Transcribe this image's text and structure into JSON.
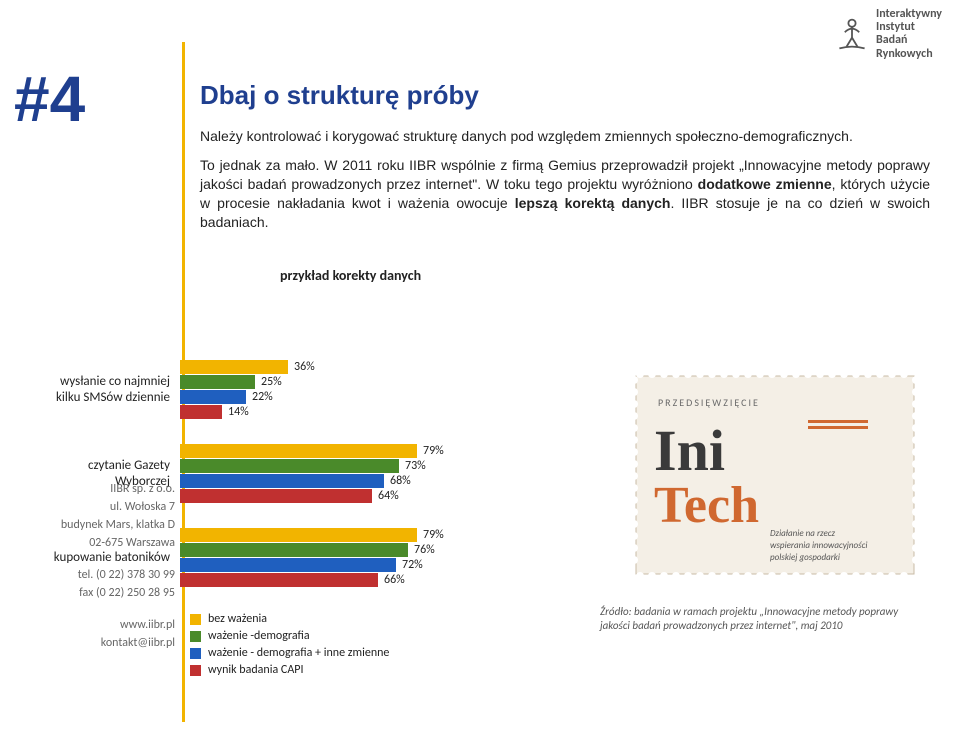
{
  "logo": {
    "line1": "Interaktywny",
    "line2": "Instytut",
    "line3": "Badań",
    "line4": "Rynkowych",
    "figureColor": "#555555"
  },
  "pageNumber": "#4",
  "heading": "Dbaj o strukturę próby",
  "colors": {
    "headingBlue": "#1f3f8f",
    "ruleYellow": "#f2b400",
    "text": "#222222"
  },
  "para1": "Należy kontrolować i korygować strukturę danych pod względem zmiennych społeczno-demograficznych.",
  "para2a": "To jednak za mało. W 2011 roku IIBR wspólnie z firmą Gemius przeprowadził projekt „Innowacyjne metody poprawy jakości badań prowadzonych przez internet\". W toku tego projektu wyróżniono ",
  "para2bold1": "dodatkowe zmienne",
  "para2b": ", których użycie w procesie nakładania kwot i ważenia owocuje ",
  "para2bold2": "lepszą korektą danych",
  "para2c": ". IIBR stosuje je na co dzień w swoich badaniach.",
  "chartTitle": "przykład korekty danych",
  "chart": {
    "maxValue": 100,
    "barWidthPx": 300,
    "groups": [
      {
        "label": "wysłanie co najmniej kilku SMSów dziennie",
        "bars": [
          {
            "value": 36,
            "color": "#f2b400"
          },
          {
            "value": 25,
            "color": "#4a8a2a"
          },
          {
            "value": 22,
            "color": "#1f5fbf"
          },
          {
            "value": 14,
            "color": "#c03030"
          }
        ]
      },
      {
        "label": "czytanie Gazety Wyborczej",
        "bars": [
          {
            "value": 79,
            "color": "#f2b400"
          },
          {
            "value": 73,
            "color": "#4a8a2a"
          },
          {
            "value": 68,
            "color": "#1f5fbf"
          },
          {
            "value": 64,
            "color": "#c03030"
          }
        ]
      },
      {
        "label": "kupowanie batoników",
        "bars": [
          {
            "value": 79,
            "color": "#f2b400"
          },
          {
            "value": 76,
            "color": "#4a8a2a"
          },
          {
            "value": 72,
            "color": "#1f5fbf"
          },
          {
            "value": 66,
            "color": "#c03030"
          }
        ]
      }
    ],
    "legend": [
      {
        "label": "bez ważenia",
        "color": "#f2b400"
      },
      {
        "label": "ważenie -demografia",
        "color": "#4a8a2a"
      },
      {
        "label": "ważenie - demografia + inne zmienne",
        "color": "#1f5fbf"
      },
      {
        "label": "wynik badania CAPI",
        "color": "#c03030"
      }
    ]
  },
  "stamp": {
    "border": "#b0a090",
    "accent": "#d06830",
    "textDark": "#3a3a3a",
    "tagline1": "PRZEDSIĘWZIĘCIE",
    "logoTop": "Ini",
    "logoBottom": "Tech",
    "sub1": "Działanie na rzecz",
    "sub2": "wspierania innowacyjności",
    "sub3": "polskiej gospodarki"
  },
  "citation": "Źródło: badania w ramach projektu „Innowacyjne metody poprawy jakości badań prowadzonych przez internet\", maj 2010",
  "footer": {
    "block1": [
      "IIBR sp. z o.o.",
      "ul. Wołoska 7",
      "budynek Mars, klatka D",
      "02-675 Warszawa"
    ],
    "block2": [
      "tel. (0 22) 378 30 99",
      "fax (0 22) 250 28 95"
    ],
    "block3": [
      "www.iibr.pl",
      "kontakt@iibr.pl"
    ]
  }
}
